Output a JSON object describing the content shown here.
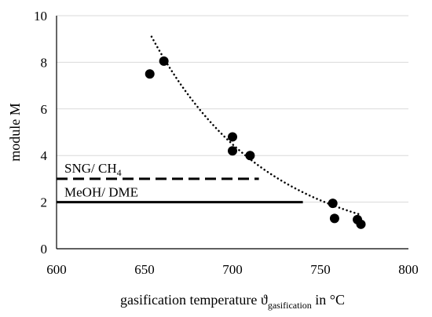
{
  "chart_data": {
    "type": "scatter",
    "title": "",
    "xlabel": {
      "text": "gasification temperature ϑ",
      "subscript": "gasification",
      "suffix": " in °C"
    },
    "ylabel": "module M",
    "xlim": [
      600,
      800
    ],
    "ylim": [
      0,
      10
    ],
    "xticks": [
      600,
      650,
      700,
      750,
      800
    ],
    "yticks": [
      0,
      2,
      4,
      6,
      8,
      10
    ],
    "grid": "horizontal",
    "series": [
      {
        "points": [
          {
            "x": 653,
            "y": 7.5
          },
          {
            "x": 661,
            "y": 8.05
          },
          {
            "x": 700,
            "y": 4.8
          },
          {
            "x": 700,
            "y": 4.2
          },
          {
            "x": 710,
            "y": 4.0
          },
          {
            "x": 757,
            "y": 1.95
          },
          {
            "x": 758,
            "y": 1.3
          },
          {
            "x": 771,
            "y": 1.25
          },
          {
            "x": 773,
            "y": 1.05
          }
        ]
      }
    ],
    "trendline": {
      "type": "exponential",
      "style": "dotted",
      "x_range": [
        654,
        772
      ],
      "points": [
        {
          "x": 654,
          "y": 9.1
        },
        {
          "x": 680,
          "y": 6.4
        },
        {
          "x": 700,
          "y": 4.75
        },
        {
          "x": 720,
          "y": 3.5
        },
        {
          "x": 740,
          "y": 2.55
        },
        {
          "x": 760,
          "y": 1.85
        },
        {
          "x": 772,
          "y": 1.48
        }
      ]
    },
    "reference_lines": [
      {
        "label": "SNG/ CH",
        "label_sub": "4",
        "y": 3,
        "x_range": [
          600,
          715
        ],
        "style": "dashed"
      },
      {
        "label": "MeOH/ DME",
        "y": 2,
        "x_range": [
          600,
          740
        ],
        "style": "solid"
      }
    ]
  }
}
